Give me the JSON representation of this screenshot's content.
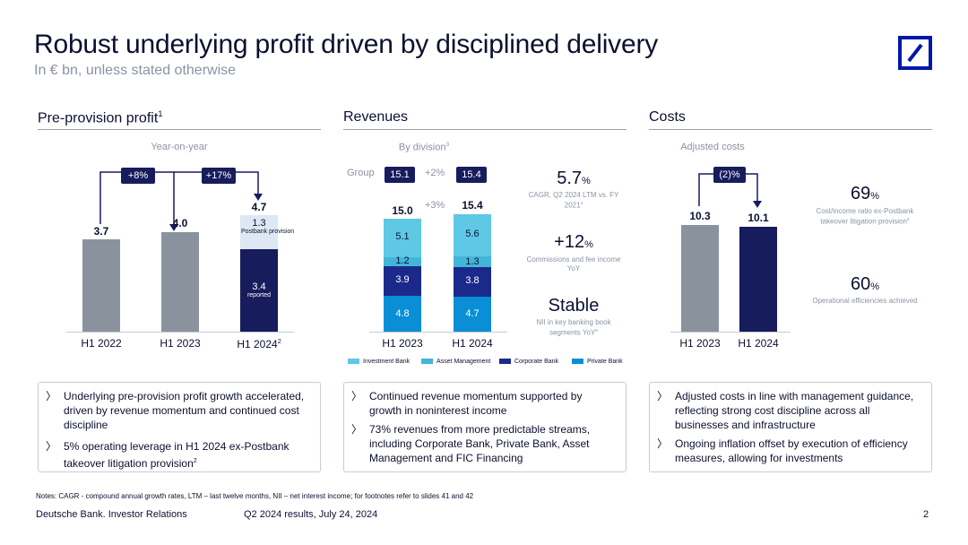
{
  "header": {
    "title": "Robust underlying profit driven by disciplined delivery",
    "subtitle": "In € bn, unless stated otherwise"
  },
  "colors": {
    "navy": "#171c5c",
    "grey": "#8a929e",
    "light_blue": "#dde8f3",
    "investment_bank": "#5ec8e5",
    "asset_management": "#42b6d9",
    "corporate_bank": "#1b2a8a",
    "private_bank": "#0a8fd6",
    "logo_blue": "#0018a8"
  },
  "left": {
    "title": "Pre-provision profit",
    "title_sup": "1",
    "sub": "Year-on-year",
    "pill1": "+8%",
    "pill2": "+17%",
    "v1": "3.7",
    "v2": "4.0",
    "v3": "4.7",
    "seg_top": "1.3",
    "seg_top_note": "Postbank provision",
    "seg_bottom": "3.4",
    "seg_bottom_note": "reported",
    "x1": "H1 2022",
    "x2": "H1 2023",
    "x3": "H1 2024",
    "x3_sup": "2",
    "bullets": [
      "Underlying pre-provision profit growth accelerated, driven by revenue momentum and continued cost discipline",
      "5% operating leverage in H1 2024 ex-Postbank takeover litigation provision"
    ],
    "bullet2_sup": "2"
  },
  "middle": {
    "title": "Revenues",
    "sub": "By division",
    "sub_sup": "3",
    "group_label": "Group",
    "group_pill1": "15.1",
    "group_growth": "+2%",
    "group_pill2": "15.4",
    "growth": "+3%",
    "t1": "15.0",
    "t2": "15.4",
    "bar1": [
      "5.1",
      "1.2",
      "3.9",
      "4.8"
    ],
    "bar2": [
      "5.6",
      "1.3",
      "3.8",
      "4.7"
    ],
    "x1": "H1 2023",
    "x2": "H1 2024",
    "kpi1_big": "5.7",
    "kpi1_unit": "%",
    "kpi1_note": "CAGR, Q2 2024 LTM vs. FY 2021",
    "kpi1_sup": "4",
    "kpi2_big": "+12",
    "kpi2_unit": "%",
    "kpi2_note": "Commissions and fee income YoY",
    "kpi3_big": "Stable",
    "kpi3_note": "NII in key banking book segments YoY",
    "kpi3_sup": "5",
    "legend": [
      "Investment Bank",
      "Asset Management",
      "Corporate Bank",
      "Private Bank"
    ],
    "bullets": [
      "Continued revenue momentum supported by growth in noninterest income",
      "73% revenues from more predictable streams, including Corporate Bank, Private Bank, Asset Management and FIC Financing"
    ]
  },
  "right": {
    "title": "Costs",
    "sub": "Adjusted costs",
    "pill": "(2)%",
    "v1": "10.3",
    "v2": "10.1",
    "x1": "H1 2023",
    "x2": "H1 2024",
    "kpi1_big": "69",
    "kpi1_unit": "%",
    "kpi1_note": "Cost/income ratio ex-Postbank takeover litigation provision",
    "kpi1_sup": "2",
    "kpi2_big": "60",
    "kpi2_unit": "%",
    "kpi2_note": "Operational efficiencies achieved",
    "bullets": [
      "Adjusted costs in line with management guidance, reflecting strong cost discipline across all businesses and infrastructure",
      "Ongoing inflation offset by execution of efficiency measures, allowing for investments"
    ]
  },
  "footer": {
    "notes": "Notes: CAGR - compound annual growth rates, LTM – last twelve months, NII – net interest income; for footnotes refer to slides 41 and 42",
    "brand": "Deutsche Bank. Investor Relations",
    "date": "Q2 2024 results, July 24, 2024",
    "page": "2"
  }
}
